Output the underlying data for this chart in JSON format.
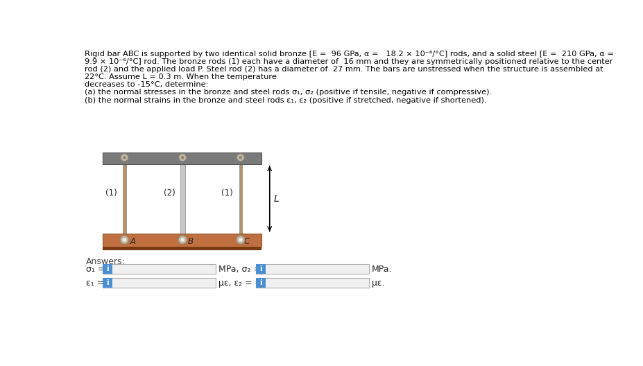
{
  "title_line1": "Rigid bar ABC is supported by two identical solid bronze [E =  96 GPa, α =   18.2 × 10⁻⁶/°C] rods, and a solid steel [E =  210 GPa, α =",
  "title_line2": "9.9 × 10⁻⁶/°C] rod. The bronze rods (1) each have a diameter of  16 mm and they are symmetrically positioned relative to the center",
  "title_line3": "rod (2) and the applied load P. Steel rod (2) has a diameter of  27 mm. The bars are unstressed when the structure is assembled at",
  "title_line4": "22°C. Assume L = 0.3 m. When the temperature",
  "title_line5": "decreases to -15°C, determine:",
  "title_line6": "(a) the normal stresses in the bronze and steel rods σ₁, σ₂ (positive if tensile, negative if compressive).",
  "title_line7": "(b) the normal strains in the bronze and steel rods ε₁, ε₂ (positive if stretched, negative if shortened).",
  "bg_color": "#ffffff",
  "text_color": "#000000",
  "gray_bar_color": "#7a7a7a",
  "gray_bar_edge": "#555555",
  "bronze_bar_color": "#c07040",
  "bronze_bar_edge": "#8b5a2b",
  "bronze_bar_bottom_color": "#7a3a10",
  "rod_bronze_color": "#b8906a",
  "rod_steel_color": "#c8c8c8",
  "rod_edge_color": "#888888",
  "pin_face_color": "#c8b898",
  "pin_edge_color": "#888888",
  "pin_hole_color": "#888888",
  "answers_label": "Answers:",
  "row1_left_label": "σ₁ =",
  "row1_mid_label": "MPa, σ₂ =",
  "row1_right_label": "MPa.",
  "row2_left_label": "ε₁ =",
  "row2_mid_label": "με, ε₂ =",
  "row2_right_label": "με.",
  "input_box_face": "#f0f0f0",
  "input_box_edge": "#b0b0b0",
  "blue_box_color": "#4a8fd4",
  "label_color": "#444444"
}
